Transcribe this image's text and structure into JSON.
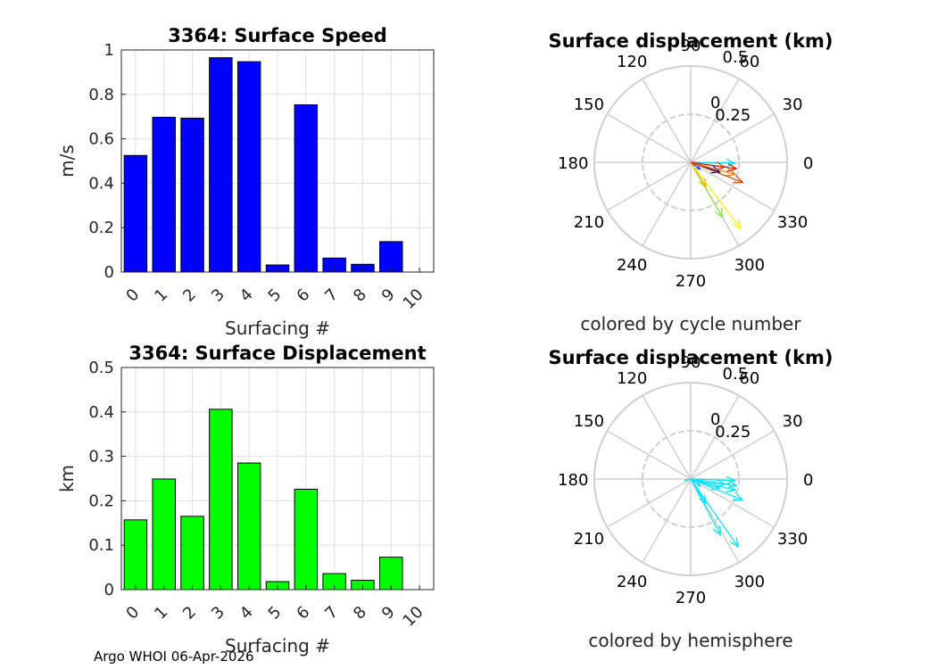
{
  "footer": "Argo WHOI 06-Apr-2026",
  "chart_data": [
    {
      "type": "bar",
      "title": "3364: Surface Speed",
      "xlabel": "Surfacing #",
      "ylabel": "m/s",
      "categories": [
        "0",
        "1",
        "2",
        "3",
        "4",
        "5",
        "6",
        "7",
        "8",
        "9",
        "10"
      ],
      "values": [
        0.525,
        0.697,
        0.693,
        0.965,
        0.947,
        0.032,
        0.753,
        0.063,
        0.035,
        0.137,
        null
      ],
      "ylim": [
        0,
        1
      ],
      "xlim": [
        0,
        11
      ],
      "yticks": [
        "0",
        "0.2",
        "0.4",
        "0.6",
        "0.8",
        "1"
      ],
      "bar_color": "#0000ff",
      "grid": true
    },
    {
      "type": "polar",
      "title": "Surface displacement (km)",
      "caption": "colored by cycle number",
      "rlim": [
        0,
        0.5
      ],
      "rticks": [
        "0.25",
        "0.5"
      ],
      "rtick_prefix": "0",
      "angle_ticks": [
        "0",
        "30",
        "60",
        "90",
        "120",
        "150",
        "180",
        "210",
        "240",
        "270",
        "300",
        "330"
      ],
      "vectors": [
        {
          "angle_deg": -18.5,
          "r": 0.16,
          "color": "#0000aa"
        },
        {
          "angle_deg": -36.4,
          "r": 0.06,
          "color": "#0044ff"
        },
        {
          "angle_deg": -1,
          "r": 0.23,
          "color": "#00e5ff"
        },
        {
          "angle_deg": -60,
          "r": 0.33,
          "color": "#88e040"
        },
        {
          "angle_deg": -53,
          "r": 0.43,
          "color": "#ffee00"
        },
        {
          "angle_deg": -58,
          "r": 0.15,
          "color": "#ffb000"
        },
        {
          "angle_deg": -15,
          "r": 0.24,
          "color": "#ff7a00"
        },
        {
          "angle_deg": -8,
          "r": 0.18,
          "color": "#ee3300"
        },
        {
          "angle_deg": -8,
          "r": 0.24,
          "color": "#d81b00"
        },
        {
          "angle_deg": -21,
          "r": 0.29,
          "color": "#e04000"
        }
      ]
    },
    {
      "type": "bar",
      "title": "3364: Surface Displacement",
      "xlabel": "Surfacing #",
      "ylabel": "km",
      "categories": [
        "0",
        "1",
        "2",
        "3",
        "4",
        "5",
        "6",
        "7",
        "8",
        "9",
        "10"
      ],
      "values": [
        0.157,
        0.249,
        0.165,
        0.406,
        0.285,
        0.018,
        0.226,
        0.036,
        0.021,
        0.073,
        null
      ],
      "ylim": [
        0,
        0.5
      ],
      "xlim": [
        0,
        11
      ],
      "yticks": [
        "0",
        "0.1",
        "0.2",
        "0.3",
        "0.4",
        "0.5"
      ],
      "bar_color": "#00ff00",
      "grid": true
    },
    {
      "type": "polar",
      "title": "Surface displacement (km)",
      "caption": "colored by hemisphere",
      "rlim": [
        0,
        0.5
      ],
      "rticks": [
        "0.25",
        "0.5"
      ],
      "rtick_prefix": "0",
      "angle_ticks": [
        "0",
        "30",
        "60",
        "90",
        "120",
        "150",
        "180",
        "210",
        "240",
        "270",
        "300",
        "330"
      ],
      "vectors": [
        {
          "angle_deg": -18,
          "r": 0.16,
          "color": "#00e5ff"
        },
        {
          "angle_deg": -36,
          "r": 0.06,
          "color": "#00e5ff"
        },
        {
          "angle_deg": -2,
          "r": 0.23,
          "color": "#00e5ff"
        },
        {
          "angle_deg": -62,
          "r": 0.33,
          "color": "#00e5ff"
        },
        {
          "angle_deg": -55,
          "r": 0.43,
          "color": "#00e5ff"
        },
        {
          "angle_deg": -58,
          "r": 0.15,
          "color": "#00e5ff"
        },
        {
          "angle_deg": -14,
          "r": 0.24,
          "color": "#00e5ff"
        },
        {
          "angle_deg": -9,
          "r": 0.18,
          "color": "#00e5ff"
        },
        {
          "angle_deg": -8,
          "r": 0.24,
          "color": "#00e5ff"
        },
        {
          "angle_deg": -22,
          "r": 0.29,
          "color": "#00e5ff"
        },
        {
          "angle_deg": 196,
          "r": 0.03,
          "color": "#00e5ff"
        }
      ]
    }
  ]
}
